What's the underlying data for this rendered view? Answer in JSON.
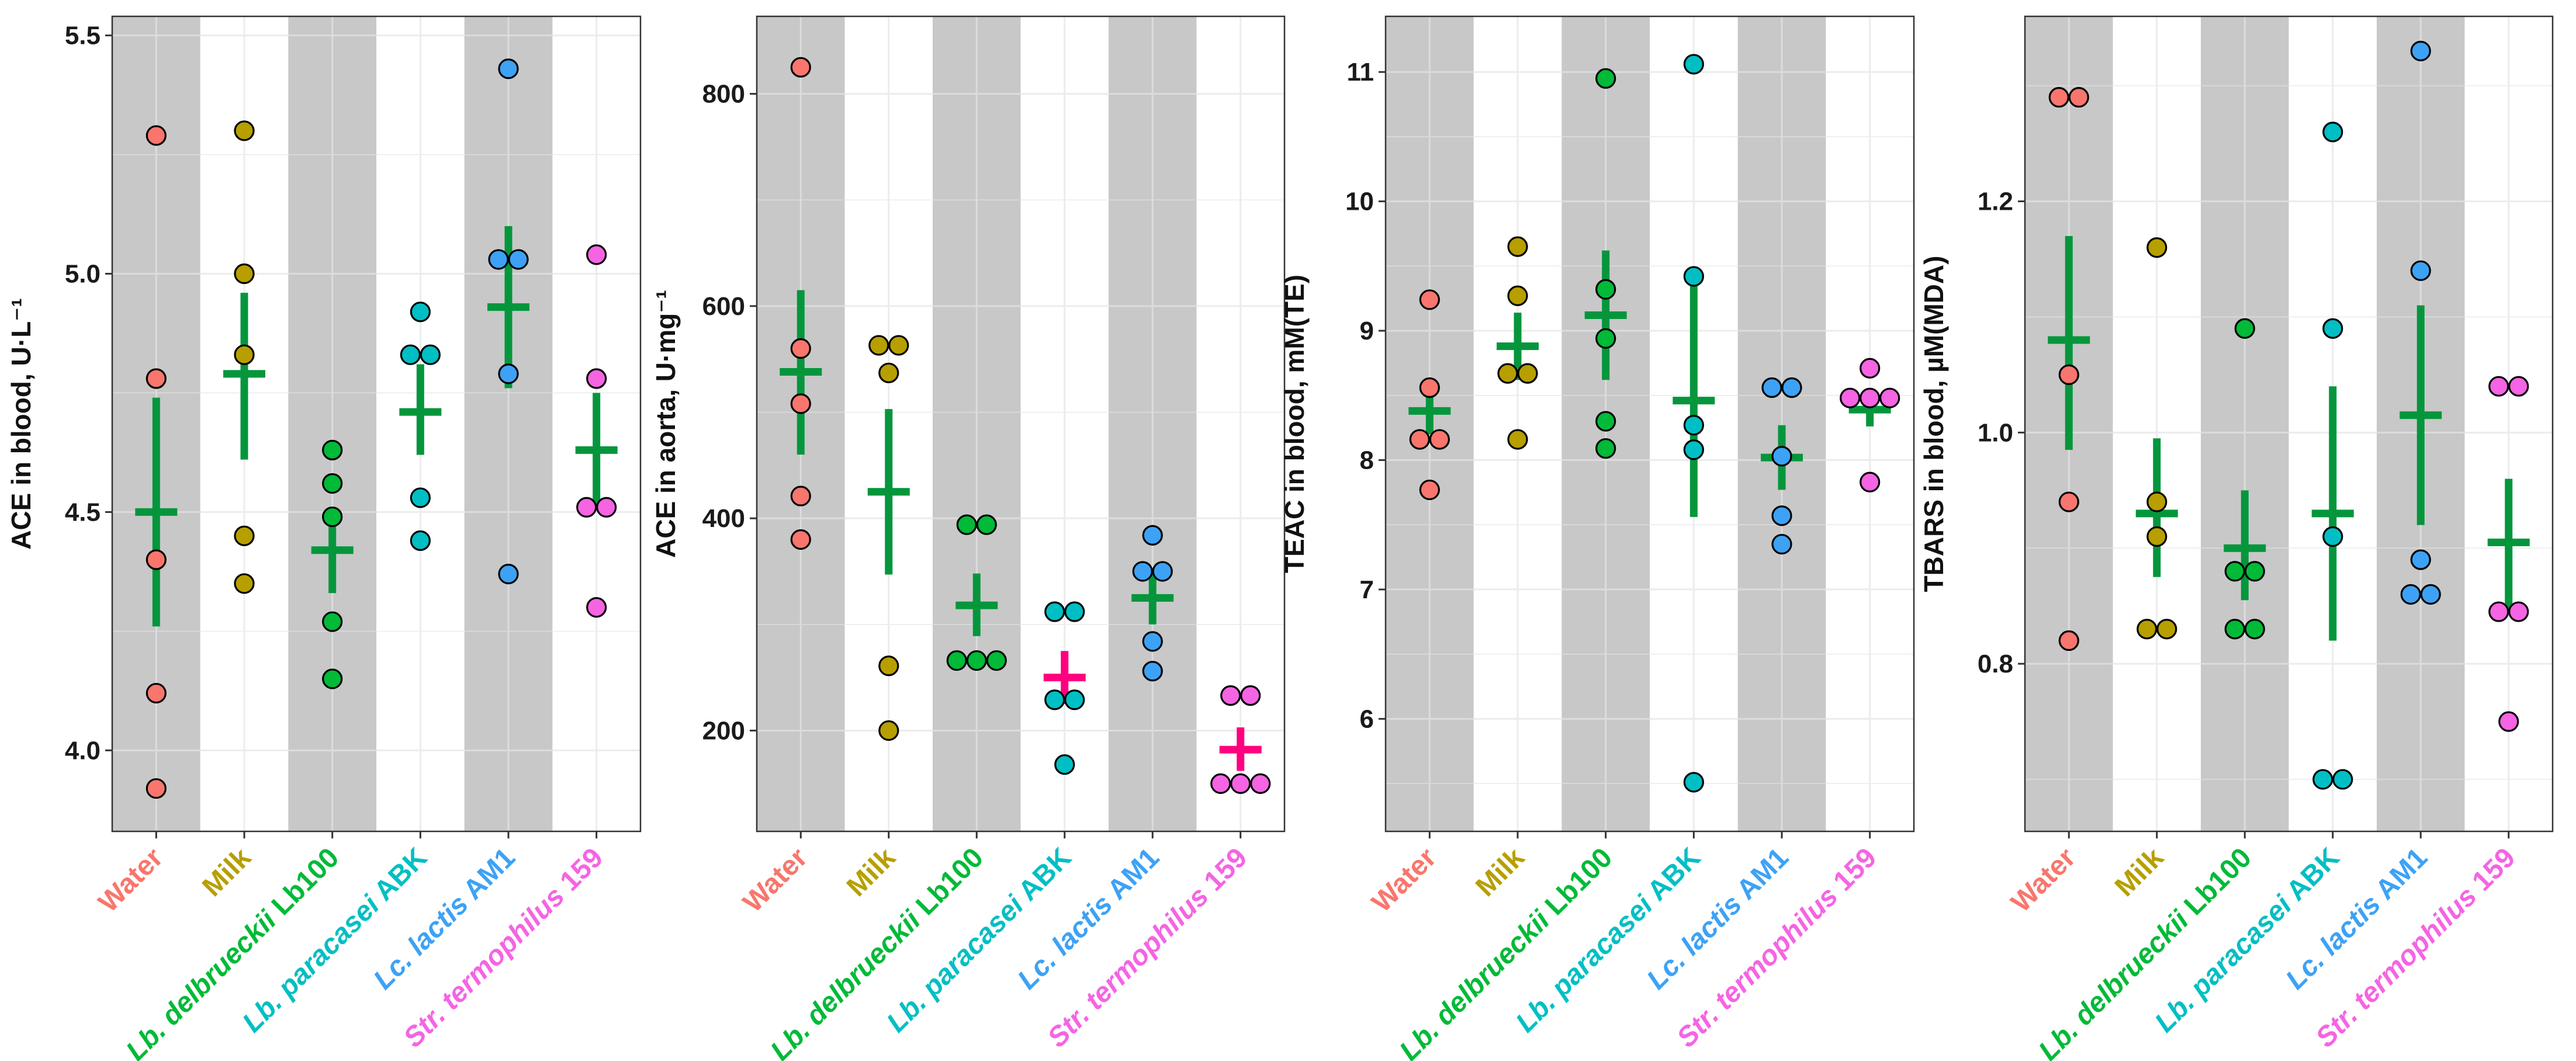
{
  "categories": [
    {
      "italic": "",
      "plain": "Water",
      "color": "#F8766D"
    },
    {
      "italic": "",
      "plain": "Milk",
      "color": "#B79F00"
    },
    {
      "italic": "Lb. delbrueckii",
      "plain": " Lb100",
      "color": "#00BA38"
    },
    {
      "italic": "Lb. paracasei",
      "plain": " ABK",
      "color": "#00BFC4"
    },
    {
      "italic": "Lc. lactis",
      "plain": " AM1",
      "color": "#3DA2F5"
    },
    {
      "italic": "Str. termophilus",
      "plain": " 159",
      "color": "#F564E3"
    }
  ],
  "colors": {
    "band": "#c8c8c8",
    "grid_on_band": "#dcdcdc",
    "grid_on_white": "#ececec",
    "mean_bar": "#05963C",
    "mean_bar_highlight": "#FF007F",
    "point_stroke": "#000000"
  },
  "chart_data": [
    {
      "type": "scatter",
      "ylabel": "ACE in blood, U·L⁻¹",
      "ylim": [
        3.83,
        5.54
      ],
      "yticks": [
        4.0,
        4.5,
        5.0,
        5.5
      ],
      "ytick_labels": [
        "4.0",
        "4.5",
        "5.0",
        "5.5"
      ],
      "grid": true,
      "series": [
        {
          "name": "Water",
          "points": [
            5.29,
            4.78,
            4.4,
            4.12,
            3.92
          ],
          "mean": 4.5,
          "lower": 4.26,
          "upper": 4.74,
          "highlight": false
        },
        {
          "name": "Milk",
          "points": [
            5.3,
            5.0,
            4.83,
            4.45,
            4.35
          ],
          "mean": 4.79,
          "lower": 4.61,
          "upper": 4.96,
          "highlight": false
        },
        {
          "name": "Lb. delbrueckii Lb100",
          "points": [
            4.63,
            4.56,
            4.49,
            4.27,
            4.15
          ],
          "mean": 4.42,
          "lower": 4.33,
          "upper": 4.51,
          "highlight": false
        },
        {
          "name": "Lb. paracasei ABK",
          "points": [
            4.92,
            4.83,
            4.83,
            4.53,
            4.44
          ],
          "mean": 4.71,
          "lower": 4.62,
          "upper": 4.81,
          "highlight": false
        },
        {
          "name": "Lc. lactis AM1",
          "points": [
            5.43,
            5.03,
            5.03,
            4.79,
            4.37
          ],
          "mean": 4.93,
          "lower": 4.76,
          "upper": 5.1,
          "highlight": false
        },
        {
          "name": "Str. termophilus 159",
          "points": [
            5.04,
            4.78,
            4.51,
            4.51,
            4.3
          ],
          "mean": 4.63,
          "lower": 4.51,
          "upper": 4.75,
          "highlight": false
        }
      ]
    },
    {
      "type": "scatter",
      "ylabel": "ACE in aorta, U·mg⁻¹",
      "ylim": [
        105,
        873
      ],
      "yticks": [
        200,
        400,
        600,
        800
      ],
      "ytick_labels": [
        "200",
        "400",
        "600",
        "800"
      ],
      "grid": true,
      "series": [
        {
          "name": "Water",
          "points": [
            825,
            560,
            508,
            421,
            380
          ],
          "mean": 538,
          "lower": 460,
          "upper": 615,
          "highlight": false
        },
        {
          "name": "Milk",
          "points": [
            563,
            563,
            537,
            261,
            200
          ],
          "mean": 425,
          "lower": 347,
          "upper": 503,
          "highlight": false
        },
        {
          "name": "Lb. delbrueckii Lb100",
          "points": [
            394,
            394,
            266,
            266,
            266
          ],
          "mean": 318,
          "lower": 289,
          "upper": 348,
          "highlight": false
        },
        {
          "name": "Lb. paracasei ABK",
          "points": [
            312,
            312,
            229,
            229,
            168
          ],
          "mean": 250,
          "lower": 225,
          "upper": 275,
          "highlight": true
        },
        {
          "name": "Lc. lactis AM1",
          "points": [
            384,
            350,
            350,
            284,
            256
          ],
          "mean": 325,
          "lower": 300,
          "upper": 350,
          "highlight": false
        },
        {
          "name": "Str. termophilus 159",
          "points": [
            233,
            233,
            150,
            150,
            150
          ],
          "mean": 182,
          "lower": 162,
          "upper": 203,
          "highlight": true
        }
      ]
    },
    {
      "type": "scatter",
      "ylabel": "TEAC in blood, mM(TE)",
      "ylim": [
        5.13,
        11.43
      ],
      "yticks": [
        6,
        7,
        8,
        9,
        10,
        11
      ],
      "ytick_labels": [
        "6",
        "7",
        "8",
        "9",
        "10",
        "11"
      ],
      "grid": true,
      "series": [
        {
          "name": "Water",
          "points": [
            9.24,
            8.56,
            8.16,
            8.16,
            7.77
          ],
          "mean": 8.38,
          "lower": 8.2,
          "upper": 8.55,
          "highlight": false
        },
        {
          "name": "Milk",
          "points": [
            9.65,
            9.27,
            8.67,
            8.67,
            8.16
          ],
          "mean": 8.88,
          "lower": 8.62,
          "upper": 9.14,
          "highlight": false
        },
        {
          "name": "Lb. delbrueckii Lb100",
          "points": [
            10.95,
            9.32,
            8.94,
            8.3,
            8.09
          ],
          "mean": 9.12,
          "lower": 8.62,
          "upper": 9.62,
          "highlight": false
        },
        {
          "name": "Lb. paracasei ABK",
          "points": [
            11.06,
            9.42,
            8.27,
            8.08,
            5.51
          ],
          "mean": 8.46,
          "lower": 7.56,
          "upper": 9.36,
          "highlight": false
        },
        {
          "name": "Lc. lactis AM1",
          "points": [
            8.56,
            8.56,
            8.03,
            7.57,
            7.35
          ],
          "mean": 8.02,
          "lower": 7.77,
          "upper": 8.27,
          "highlight": false
        },
        {
          "name": "Str. termophilus 159",
          "points": [
            8.71,
            8.48,
            8.48,
            8.48,
            7.83
          ],
          "mean": 8.39,
          "lower": 8.26,
          "upper": 8.52,
          "highlight": false
        }
      ]
    },
    {
      "type": "scatter",
      "ylabel": "TBARS in blood, µM(MDA)",
      "ylim": [
        0.655,
        1.36
      ],
      "yticks": [
        0.8,
        1.0,
        1.2
      ],
      "ytick_labels": [
        "0.8",
        "1.0",
        "1.2"
      ],
      "grid": true,
      "series": [
        {
          "name": "Water",
          "points": [
            1.29,
            1.29,
            1.05,
            0.94,
            0.82
          ],
          "mean": 1.08,
          "lower": 0.985,
          "upper": 1.17,
          "highlight": false
        },
        {
          "name": "Milk",
          "points": [
            1.16,
            0.94,
            0.91,
            0.83,
            0.83
          ],
          "mean": 0.93,
          "lower": 0.875,
          "upper": 0.995,
          "highlight": false
        },
        {
          "name": "Lb. delbrueckii Lb100",
          "points": [
            1.09,
            0.88,
            0.88,
            0.83,
            0.83
          ],
          "mean": 0.9,
          "lower": 0.855,
          "upper": 0.95,
          "highlight": false
        },
        {
          "name": "Lb. paracasei ABK",
          "points": [
            1.26,
            1.09,
            0.91,
            0.7,
            0.7
          ],
          "mean": 0.93,
          "lower": 0.82,
          "upper": 1.04,
          "highlight": false
        },
        {
          "name": "Lc. lactis AM1",
          "points": [
            1.33,
            1.14,
            0.89,
            0.86,
            0.86
          ],
          "mean": 1.015,
          "lower": 0.92,
          "upper": 1.11,
          "highlight": false
        },
        {
          "name": "Str. termophilus 159",
          "points": [
            1.04,
            1.04,
            0.845,
            0.845,
            0.75
          ],
          "mean": 0.905,
          "lower": 0.845,
          "upper": 0.96,
          "highlight": false
        }
      ]
    }
  ]
}
